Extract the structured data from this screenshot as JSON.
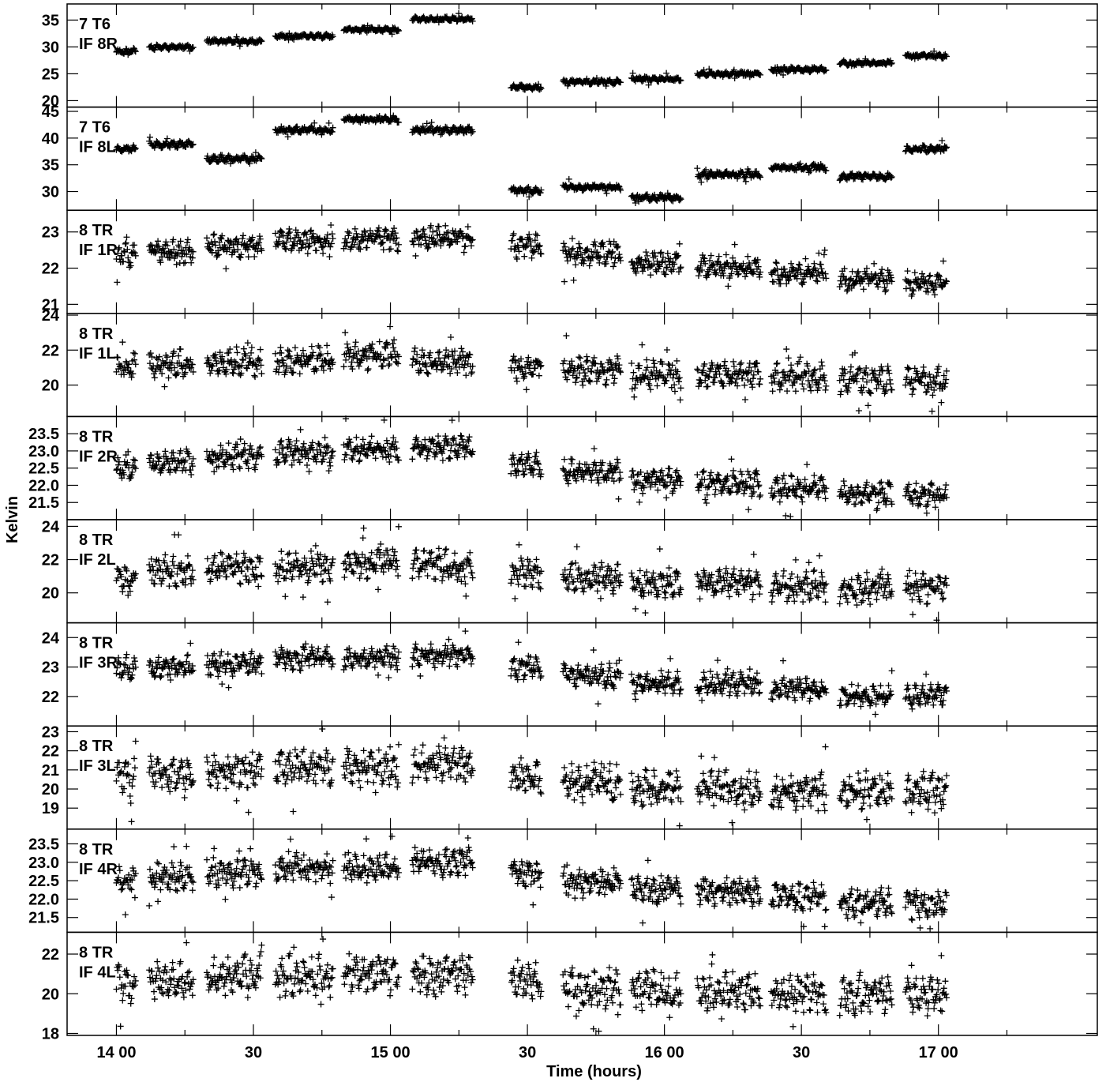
{
  "chart_data": {
    "type": "scatter",
    "marker": "+",
    "marker_color": "#000000",
    "ylabel": "Kelvin",
    "xlabel": "Time (hours)",
    "x_unit": "hours",
    "xlim": [
      13.82,
      17.58
    ],
    "x_ticks": [
      {
        "value": 14.0,
        "label": "14 00"
      },
      {
        "value": 14.5,
        "label": "30"
      },
      {
        "value": 15.0,
        "label": "15 00"
      },
      {
        "value": 15.5,
        "label": "30"
      },
      {
        "value": 16.0,
        "label": "16 00"
      },
      {
        "value": 16.5,
        "label": "30"
      },
      {
        "value": 17.0,
        "label": "17 00"
      }
    ],
    "x_minor_ticks": [
      14.25,
      14.75,
      15.25,
      15.75,
      16.25,
      16.75,
      17.25
    ],
    "scans": [
      [
        14.0,
        14.07
      ],
      [
        14.12,
        14.28
      ],
      [
        14.33,
        14.53
      ],
      [
        14.58,
        14.79
      ],
      [
        14.83,
        15.03
      ],
      [
        15.08,
        15.3
      ],
      [
        15.44,
        15.55
      ],
      [
        15.63,
        15.84
      ],
      [
        15.88,
        16.06
      ],
      [
        16.12,
        16.35
      ],
      [
        16.39,
        16.59
      ],
      [
        16.64,
        16.83
      ],
      [
        16.88,
        17.03
      ]
    ],
    "panels": [
      {
        "label1": "7 T6",
        "label2": "IF 8R",
        "ylim": [
          18.8,
          38.0
        ],
        "yticks": [
          20,
          25,
          30,
          35
        ],
        "scan_levels": [
          29.2,
          30.0,
          31.0,
          32.0,
          33.2,
          35.2,
          22.5,
          23.5,
          24.0,
          25.0,
          25.8,
          27.0,
          28.3
        ],
        "spread": 0.25,
        "outliers": 0.05,
        "seed": 11
      },
      {
        "label1": "7 T6",
        "label2": "IF 8L",
        "ylim": [
          26.5,
          45.8
        ],
        "yticks": [
          30,
          35,
          40,
          45
        ],
        "scan_levels": [
          38.0,
          38.8,
          36.2,
          41.5,
          43.5,
          41.5,
          30.2,
          30.8,
          28.9,
          33.2,
          34.5,
          32.8,
          38.0
        ],
        "spread": 0.35,
        "outliers": 0.05,
        "seed": 23
      },
      {
        "label1": "8 TR",
        "label2": "IF 1R",
        "ylim": [
          20.75,
          23.6
        ],
        "yticks": [
          21,
          22,
          23
        ],
        "scan_levels": [
          22.35,
          22.45,
          22.6,
          22.75,
          22.8,
          22.85,
          22.6,
          22.4,
          22.15,
          22.05,
          21.85,
          21.7,
          21.6
        ],
        "spread": 0.18,
        "outliers": 0.04,
        "seed": 37
      },
      {
        "label1": "8 TR",
        "label2": "IF 1L",
        "ylim": [
          18.2,
          24.1
        ],
        "yticks": [
          20,
          22,
          24
        ],
        "scan_levels": [
          21.0,
          21.2,
          21.3,
          21.4,
          21.7,
          21.3,
          21.0,
          20.8,
          20.6,
          20.6,
          20.5,
          20.3,
          20.2
        ],
        "spread": 0.45,
        "outliers": 0.05,
        "seed": 41
      },
      {
        "label1": "8 TR",
        "label2": "IF 2R",
        "ylim": [
          21.0,
          24.0
        ],
        "yticks": [
          21.5,
          22.0,
          22.5,
          23.0,
          23.5
        ],
        "scan_levels": [
          22.55,
          22.65,
          22.85,
          22.95,
          23.05,
          23.1,
          22.6,
          22.4,
          22.15,
          22.05,
          21.9,
          21.75,
          21.7
        ],
        "spread": 0.2,
        "outliers": 0.05,
        "seed": 53
      },
      {
        "label1": "8 TR",
        "label2": "IF 2L",
        "ylim": [
          18.2,
          24.4
        ],
        "yticks": [
          20,
          22,
          24
        ],
        "scan_levels": [
          21.0,
          21.3,
          21.5,
          21.6,
          21.8,
          21.7,
          21.2,
          20.9,
          20.6,
          20.6,
          20.4,
          20.3,
          20.3
        ],
        "spread": 0.5,
        "outliers": 0.05,
        "seed": 67
      },
      {
        "label1": "8 TR",
        "label2": "IF 3R",
        "ylim": [
          21.0,
          24.5
        ],
        "yticks": [
          22,
          23,
          24
        ],
        "scan_levels": [
          22.9,
          23.0,
          23.1,
          23.3,
          23.3,
          23.4,
          22.95,
          22.7,
          22.5,
          22.45,
          22.25,
          22.0,
          22.0
        ],
        "spread": 0.22,
        "outliers": 0.05,
        "seed": 71
      },
      {
        "label1": "8 TR",
        "label2": "IF 3L",
        "ylim": [
          17.9,
          23.3
        ],
        "yticks": [
          19,
          20,
          21,
          22,
          23
        ],
        "scan_levels": [
          20.7,
          20.8,
          21.0,
          21.2,
          21.1,
          21.3,
          20.6,
          20.3,
          20.1,
          20.0,
          19.9,
          19.9,
          19.8
        ],
        "spread": 0.55,
        "outliers": 0.05,
        "seed": 83
      },
      {
        "label1": "8 TR",
        "label2": "IF 4R",
        "ylim": [
          21.1,
          23.9
        ],
        "yticks": [
          21.5,
          22.0,
          22.5,
          23.0,
          23.5
        ],
        "scan_levels": [
          22.55,
          22.6,
          22.7,
          22.85,
          22.85,
          23.0,
          22.7,
          22.45,
          22.25,
          22.2,
          22.05,
          21.9,
          21.85
        ],
        "spread": 0.22,
        "outliers": 0.05,
        "seed": 97
      },
      {
        "label1": "8 TR",
        "label2": "IF 4L",
        "ylim": [
          17.9,
          23.1
        ],
        "yticks": [
          18,
          20,
          22
        ],
        "scan_levels": [
          20.5,
          20.6,
          20.9,
          20.9,
          21.0,
          21.0,
          20.6,
          20.3,
          20.2,
          20.1,
          20.0,
          20.0,
          19.9
        ],
        "spread": 0.55,
        "outliers": 0.05,
        "seed": 101
      }
    ]
  }
}
